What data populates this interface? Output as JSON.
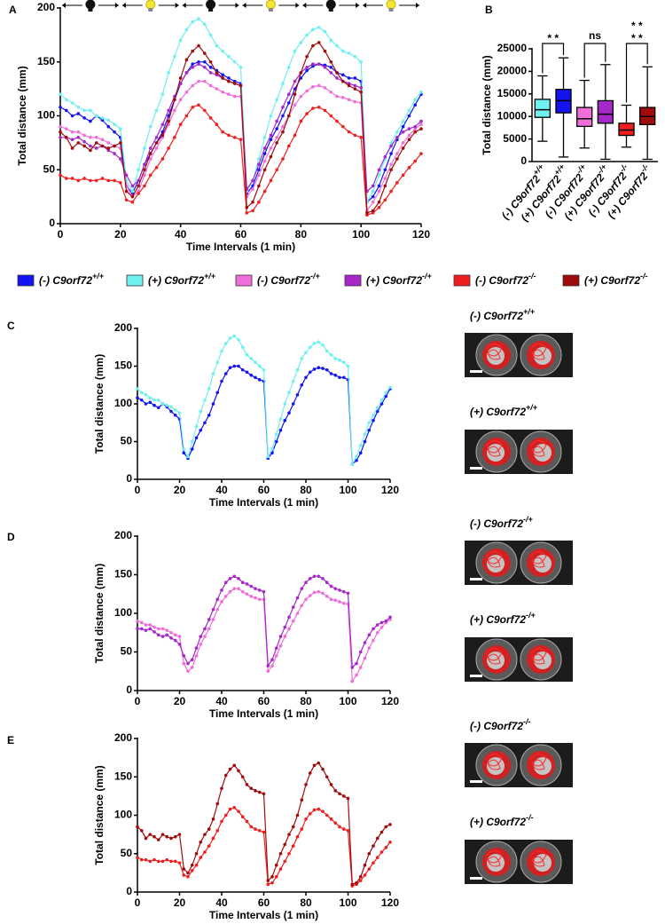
{
  "chart_data": [
    {
      "type": "line",
      "panel": "A",
      "xlabel": "Time Intervals  (1 min)",
      "ylabel": "Total distance (mm)",
      "xlim": [
        0,
        120
      ],
      "xticks": [
        0,
        20,
        40,
        60,
        80,
        100,
        120
      ],
      "ylim": [
        0,
        200
      ],
      "yticks": [
        0,
        50,
        100,
        150,
        200
      ],
      "legend": "bottom",
      "x": [
        0,
        2,
        4,
        6,
        8,
        10,
        12,
        14,
        16,
        18,
        20,
        22,
        24,
        26,
        28,
        30,
        32,
        34,
        36,
        38,
        40,
        42,
        44,
        46,
        48,
        50,
        52,
        54,
        56,
        58,
        60,
        62,
        64,
        66,
        68,
        70,
        72,
        74,
        76,
        78,
        80,
        82,
        84,
        86,
        88,
        90,
        92,
        94,
        96,
        98,
        100,
        102,
        104,
        106,
        108,
        110,
        112,
        114,
        116,
        118,
        120
      ],
      "series": [
        {
          "name": "(-) C9orf72+/+",
          "color": "#1414f0",
          "values": [
            108,
            105,
            100,
            102,
            98,
            95,
            100,
            96,
            90,
            85,
            80,
            35,
            28,
            40,
            55,
            65,
            75,
            85,
            100,
            115,
            130,
            140,
            148,
            150,
            150,
            145,
            142,
            138,
            135,
            132,
            130,
            28,
            35,
            50,
            65,
            78,
            88,
            100,
            112,
            125,
            135,
            142,
            146,
            148,
            147,
            145,
            140,
            138,
            135,
            135,
            132,
            20,
            25,
            35,
            50,
            65,
            78,
            90,
            100,
            110,
            120
          ]
        },
        {
          "name": "(+) C9orf72+/+",
          "color": "#6ef0f0",
          "values": [
            120,
            115,
            112,
            108,
            105,
            105,
            100,
            98,
            96,
            92,
            88,
            40,
            30,
            50,
            70,
            90,
            105,
            120,
            140,
            155,
            170,
            180,
            187,
            190,
            185,
            175,
            165,
            160,
            155,
            150,
            145,
            30,
            40,
            60,
            80,
            100,
            115,
            130,
            145,
            160,
            168,
            175,
            180,
            182,
            178,
            170,
            165,
            160,
            158,
            155,
            150,
            20,
            30,
            45,
            60,
            75,
            85,
            95,
            105,
            115,
            122
          ]
        },
        {
          "name": "(-) C9orf72-/+",
          "color": "#f06ed8",
          "values": [
            90,
            88,
            85,
            85,
            82,
            80,
            80,
            78,
            75,
            72,
            70,
            35,
            25,
            30,
            45,
            60,
            70,
            80,
            92,
            105,
            115,
            122,
            128,
            132,
            132,
            128,
            125,
            122,
            120,
            118,
            118,
            25,
            32,
            45,
            58,
            70,
            80,
            90,
            100,
            110,
            118,
            123,
            127,
            128,
            126,
            122,
            118,
            117,
            115,
            113,
            112,
            12,
            20,
            30,
            42,
            55,
            65,
            75,
            82,
            88,
            92
          ]
        },
        {
          "name": "(+) C9orf72-/+",
          "color": "#a628c8",
          "values": [
            80,
            80,
            78,
            80,
            76,
            72,
            70,
            72,
            68,
            65,
            60,
            45,
            35,
            40,
            55,
            70,
            80,
            92,
            105,
            118,
            130,
            140,
            145,
            148,
            145,
            140,
            138,
            135,
            132,
            130,
            128,
            32,
            40,
            55,
            70,
            82,
            95,
            108,
            120,
            132,
            140,
            145,
            148,
            148,
            145,
            140,
            135,
            132,
            130,
            128,
            126,
            30,
            35,
            50,
            62,
            72,
            80,
            85,
            88,
            90,
            95
          ]
        },
        {
          "name": "(-) C9orf72-/-",
          "color": "#f01e1e",
          "values": [
            45,
            42,
            42,
            40,
            42,
            40,
            40,
            42,
            40,
            40,
            38,
            22,
            20,
            28,
            35,
            45,
            52,
            60,
            70,
            80,
            92,
            100,
            108,
            110,
            105,
            98,
            92,
            85,
            82,
            80,
            78,
            10,
            12,
            20,
            30,
            40,
            50,
            60,
            72,
            82,
            95,
            102,
            107,
            108,
            105,
            100,
            95,
            90,
            85,
            82,
            80,
            8,
            10,
            15,
            22,
            30,
            38,
            45,
            52,
            58,
            65
          ]
        },
        {
          "name": "(+) C9orf72-/-",
          "color": "#a00c0c",
          "values": [
            85,
            80,
            70,
            75,
            72,
            68,
            75,
            72,
            70,
            72,
            75,
            30,
            25,
            35,
            50,
            65,
            75,
            82,
            95,
            115,
            135,
            152,
            160,
            165,
            158,
            150,
            140,
            135,
            132,
            130,
            128,
            15,
            20,
            35,
            50,
            62,
            75,
            85,
            100,
            120,
            140,
            155,
            165,
            168,
            160,
            150,
            140,
            132,
            128,
            125,
            122,
            10,
            12,
            20,
            35,
            50,
            60,
            70,
            78,
            85,
            88
          ]
        }
      ]
    },
    {
      "type": "box",
      "panel": "B",
      "ylabel": "Total distance (mm)",
      "ylim": [
        0,
        25000
      ],
      "yticks": [
        0,
        5000,
        10000,
        15000,
        20000,
        25000
      ],
      "categories": [
        "(-) C9orf72+/+",
        "(+) C9orf72+/+",
        "(-) C9orf72-/+",
        "(+) C9orf72-/+",
        "(-) C9orf72-/-",
        "(+) C9orf72-/-"
      ],
      "colors": [
        "#6ef0f0",
        "#1414f0",
        "#f06ed8",
        "#a628c8",
        "#f01e1e",
        "#a00c0c"
      ],
      "boxes": [
        {
          "min": 4500,
          "q1": 9800,
          "median": 11500,
          "q3": 13800,
          "max": 19000
        },
        {
          "min": 1000,
          "q1": 10800,
          "median": 13500,
          "q3": 16000,
          "max": 23000
        },
        {
          "min": 3000,
          "q1": 7800,
          "median": 9500,
          "q3": 12000,
          "max": 18000
        },
        {
          "min": 500,
          "q1": 8500,
          "median": 10500,
          "q3": 13500,
          "max": 21500
        },
        {
          "min": 3200,
          "q1": 5800,
          "median": 7000,
          "q3": 8500,
          "max": 12500
        },
        {
          "min": 500,
          "q1": 8200,
          "median": 10000,
          "q3": 12000,
          "max": 21000
        }
      ],
      "annotations": [
        "* *",
        "ns",
        "* *",
        "* *"
      ]
    },
    {
      "type": "line",
      "panel": "C",
      "xlabel": "Time Intervals  (1 min)",
      "ylabel": "Total distance (mm)",
      "xlim": [
        0,
        120
      ],
      "xticks": [
        0,
        20,
        40,
        60,
        80,
        100,
        120
      ],
      "ylim": [
        0,
        200
      ],
      "yticks": [
        0,
        50,
        100,
        150,
        200
      ],
      "x": [
        0,
        2,
        4,
        6,
        8,
        10,
        12,
        14,
        16,
        18,
        20,
        22,
        24,
        26,
        28,
        30,
        32,
        34,
        36,
        38,
        40,
        42,
        44,
        46,
        48,
        50,
        52,
        54,
        56,
        58,
        60,
        62,
        64,
        66,
        68,
        70,
        72,
        74,
        76,
        78,
        80,
        82,
        84,
        86,
        88,
        90,
        92,
        94,
        96,
        98,
        100,
        102,
        104,
        106,
        108,
        110,
        112,
        114,
        116,
        118,
        120
      ],
      "series": [
        {
          "name": "(-) C9orf72+/+",
          "color": "#1414f0",
          "values": [
            108,
            105,
            100,
            102,
            98,
            95,
            100,
            96,
            90,
            85,
            80,
            35,
            28,
            40,
            55,
            65,
            75,
            85,
            100,
            115,
            130,
            140,
            148,
            150,
            150,
            145,
            142,
            138,
            135,
            132,
            130,
            28,
            35,
            50,
            65,
            78,
            88,
            100,
            112,
            125,
            135,
            142,
            146,
            148,
            147,
            145,
            140,
            138,
            135,
            135,
            132,
            20,
            25,
            35,
            50,
            65,
            78,
            90,
            100,
            110,
            120
          ]
        },
        {
          "name": "(+) C9orf72+/+",
          "color": "#6ef0f0",
          "values": [
            120,
            115,
            112,
            108,
            105,
            105,
            100,
            98,
            96,
            92,
            88,
            40,
            30,
            50,
            70,
            90,
            105,
            120,
            140,
            155,
            170,
            180,
            187,
            190,
            185,
            175,
            165,
            160,
            155,
            150,
            145,
            30,
            40,
            60,
            80,
            100,
            115,
            130,
            145,
            160,
            168,
            175,
            180,
            182,
            178,
            170,
            165,
            160,
            158,
            155,
            150,
            20,
            30,
            45,
            60,
            75,
            85,
            95,
            105,
            115,
            122
          ]
        }
      ]
    },
    {
      "type": "line",
      "panel": "D",
      "xlabel": "Time Intervals  (1 min)",
      "ylabel": "Total distance (mm)",
      "xlim": [
        0,
        120
      ],
      "xticks": [
        0,
        20,
        40,
        60,
        80,
        100,
        120
      ],
      "ylim": [
        0,
        200
      ],
      "yticks": [
        0,
        50,
        100,
        150,
        200
      ],
      "x": [
        0,
        2,
        4,
        6,
        8,
        10,
        12,
        14,
        16,
        18,
        20,
        22,
        24,
        26,
        28,
        30,
        32,
        34,
        36,
        38,
        40,
        42,
        44,
        46,
        48,
        50,
        52,
        54,
        56,
        58,
        60,
        62,
        64,
        66,
        68,
        70,
        72,
        74,
        76,
        78,
        80,
        82,
        84,
        86,
        88,
        90,
        92,
        94,
        96,
        98,
        100,
        102,
        104,
        106,
        108,
        110,
        112,
        114,
        116,
        118,
        120
      ],
      "series": [
        {
          "name": "(-) C9orf72-/+",
          "color": "#f06ed8",
          "values": [
            90,
            88,
            85,
            85,
            82,
            80,
            80,
            78,
            75,
            72,
            70,
            35,
            25,
            30,
            45,
            60,
            70,
            80,
            92,
            105,
            115,
            122,
            128,
            132,
            132,
            128,
            125,
            122,
            120,
            118,
            118,
            25,
            32,
            45,
            58,
            70,
            80,
            90,
            100,
            110,
            118,
            123,
            127,
            128,
            126,
            122,
            118,
            117,
            115,
            113,
            112,
            12,
            20,
            30,
            42,
            55,
            65,
            75,
            82,
            88,
            92
          ]
        },
        {
          "name": "(+) C9orf72-/+",
          "color": "#a628c8",
          "values": [
            80,
            80,
            78,
            80,
            76,
            72,
            70,
            72,
            68,
            65,
            60,
            45,
            35,
            40,
            55,
            70,
            80,
            92,
            105,
            118,
            130,
            140,
            145,
            148,
            145,
            140,
            138,
            135,
            132,
            130,
            128,
            32,
            40,
            55,
            70,
            82,
            95,
            108,
            120,
            132,
            140,
            145,
            148,
            148,
            145,
            140,
            135,
            132,
            130,
            128,
            126,
            30,
            35,
            50,
            62,
            72,
            80,
            85,
            88,
            90,
            95
          ]
        }
      ]
    },
    {
      "type": "line",
      "panel": "E",
      "xlabel": "Time Intervals  (1 min)",
      "ylabel": "Total distance (mm)",
      "xlim": [
        0,
        120
      ],
      "xticks": [
        0,
        20,
        40,
        60,
        80,
        100,
        120
      ],
      "ylim": [
        0,
        200
      ],
      "yticks": [
        0,
        50,
        100,
        150,
        200
      ],
      "x": [
        0,
        2,
        4,
        6,
        8,
        10,
        12,
        14,
        16,
        18,
        20,
        22,
        24,
        26,
        28,
        30,
        32,
        34,
        36,
        38,
        40,
        42,
        44,
        46,
        48,
        50,
        52,
        54,
        56,
        58,
        60,
        62,
        64,
        66,
        68,
        70,
        72,
        74,
        76,
        78,
        80,
        82,
        84,
        86,
        88,
        90,
        92,
        94,
        96,
        98,
        100,
        102,
        104,
        106,
        108,
        110,
        112,
        114,
        116,
        118,
        120
      ],
      "series": [
        {
          "name": "(-) C9orf72-/-",
          "color": "#f01e1e",
          "values": [
            45,
            42,
            42,
            40,
            42,
            40,
            40,
            42,
            40,
            40,
            38,
            22,
            20,
            28,
            35,
            45,
            52,
            60,
            70,
            80,
            92,
            100,
            108,
            110,
            105,
            98,
            92,
            85,
            82,
            80,
            78,
            10,
            12,
            20,
            30,
            40,
            50,
            60,
            72,
            82,
            95,
            102,
            107,
            108,
            105,
            100,
            95,
            90,
            85,
            82,
            80,
            8,
            10,
            15,
            22,
            30,
            38,
            45,
            52,
            58,
            65
          ]
        },
        {
          "name": "(+) C9orf72-/-",
          "color": "#a00c0c",
          "values": [
            85,
            80,
            70,
            75,
            72,
            68,
            75,
            72,
            70,
            72,
            75,
            30,
            25,
            35,
            50,
            65,
            75,
            82,
            95,
            115,
            135,
            152,
            160,
            165,
            158,
            150,
            140,
            135,
            132,
            130,
            128,
            15,
            20,
            35,
            50,
            62,
            75,
            85,
            100,
            120,
            140,
            155,
            165,
            168,
            160,
            150,
            140,
            132,
            128,
            125,
            122,
            10,
            12,
            20,
            35,
            50,
            60,
            70,
            78,
            85,
            88
          ]
        }
      ]
    }
  ]
}
